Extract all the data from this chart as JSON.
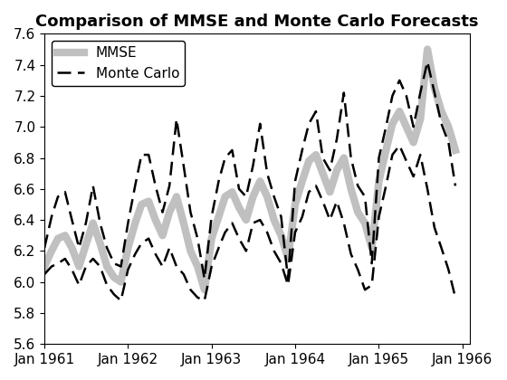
{
  "title": "Comparison of MMSE and Monte Carlo Forecasts",
  "ylim": [
    5.6,
    7.6
  ],
  "yticks": [
    5.6,
    5.8,
    6.0,
    6.2,
    6.4,
    6.6,
    6.8,
    7.0,
    7.2,
    7.4,
    7.6
  ],
  "xtick_labels": [
    "Jan 1961",
    "Jan 1962",
    "Jan 1963",
    "Jan 1964",
    "Jan 1965",
    "Jan 1966"
  ],
  "mmse_color": "#c0c0c0",
  "mmse_linewidth": 6,
  "mc_color": "#000000",
  "mc_linewidth": 1.8,
  "mc_dash": [
    6,
    3
  ],
  "mmse": [
    6.1,
    6.2,
    6.28,
    6.3,
    6.22,
    6.1,
    6.24,
    6.38,
    6.25,
    6.1,
    6.03,
    6.0,
    6.22,
    6.38,
    6.5,
    6.52,
    6.4,
    6.3,
    6.45,
    6.55,
    6.38,
    6.2,
    6.1,
    5.95,
    6.28,
    6.42,
    6.55,
    6.58,
    6.48,
    6.4,
    6.55,
    6.65,
    6.55,
    6.4,
    6.3,
    6.15,
    6.5,
    6.65,
    6.78,
    6.82,
    6.7,
    6.58,
    6.72,
    6.8,
    6.6,
    6.45,
    6.38,
    6.22,
    6.65,
    6.85,
    7.02,
    7.1,
    7.0,
    6.9,
    7.05,
    7.5,
    7.25,
    7.1,
    7.0,
    6.85
  ],
  "mc_upper": [
    6.22,
    6.42,
    6.55,
    6.58,
    6.4,
    6.22,
    6.38,
    6.62,
    6.38,
    6.22,
    6.12,
    6.1,
    6.38,
    6.62,
    6.82,
    6.82,
    6.62,
    6.45,
    6.62,
    7.05,
    6.75,
    6.45,
    6.28,
    6.02,
    6.42,
    6.65,
    6.8,
    6.85,
    6.6,
    6.55,
    6.75,
    7.02,
    6.7,
    6.55,
    6.42,
    6.02,
    6.65,
    6.85,
    7.02,
    7.1,
    6.8,
    6.72,
    6.92,
    7.22,
    6.8,
    6.62,
    6.55,
    6.12,
    6.8,
    7.0,
    7.2,
    7.3,
    7.2,
    7.0,
    7.22,
    7.42,
    7.22,
    7.02,
    6.9,
    6.62
  ],
  "mc_lower": [
    6.05,
    6.1,
    6.12,
    6.15,
    6.08,
    5.98,
    6.1,
    6.15,
    6.1,
    5.98,
    5.92,
    5.88,
    6.08,
    6.18,
    6.25,
    6.28,
    6.18,
    6.1,
    6.22,
    6.1,
    6.05,
    5.95,
    5.9,
    5.88,
    6.1,
    6.22,
    6.32,
    6.38,
    6.28,
    6.2,
    6.38,
    6.4,
    6.32,
    6.2,
    6.12,
    5.98,
    6.32,
    6.42,
    6.58,
    6.62,
    6.52,
    6.4,
    6.52,
    6.38,
    6.18,
    6.08,
    5.95,
    5.98,
    6.42,
    6.62,
    6.82,
    6.88,
    6.78,
    6.68,
    6.82,
    6.6,
    6.35,
    6.22,
    6.08,
    5.9
  ],
  "title_fontsize": 13,
  "tick_fontsize": 11,
  "legend_fontsize": 11,
  "n_months": 60
}
